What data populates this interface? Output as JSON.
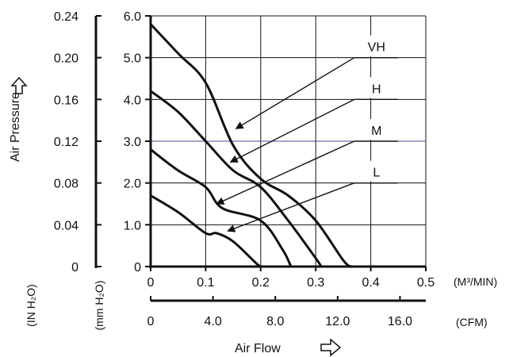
{
  "chart_data": {
    "type": "line",
    "xlabel": "Air Flow",
    "x_unit_primary": "(M³/MIN)",
    "x_unit_secondary": "(CFM)",
    "ylabel": "Air Pressure",
    "y_unit_primary": "(mm H₂O)",
    "y_unit_secondary": "(IN H₂O)",
    "xlim": [
      0,
      0.5
    ],
    "ylim": [
      0,
      6.0
    ],
    "x_ticks": [
      0,
      0.1,
      0.2,
      0.3,
      0.4,
      0.5
    ],
    "x_tick_labels": [
      "0",
      "0.1",
      "0.2",
      "0.3",
      "0.4",
      "0.5"
    ],
    "x2_ticks": [
      0,
      4.0,
      8.0,
      12.0,
      16.0
    ],
    "x2_tick_labels": [
      "0",
      "4.0",
      "8.0",
      "12.0",
      "16.0"
    ],
    "y_ticks": [
      0,
      1.0,
      2.0,
      3.0,
      4.0,
      5.0,
      6.0
    ],
    "y_tick_labels": [
      "0",
      "1.0",
      "2.0",
      "3.0",
      "4.0",
      "5.0",
      "6.0"
    ],
    "y2_ticks": [
      0,
      0.04,
      0.08,
      0.12,
      0.16,
      0.2,
      0.24
    ],
    "y2_tick_labels": [
      "0",
      "0.04",
      "0.08",
      "0.12",
      "0.16",
      "0.20",
      "0.24"
    ],
    "grid": true,
    "series": [
      {
        "name": "VH",
        "x": [
          0,
          0.05,
          0.1,
          0.15,
          0.2,
          0.25,
          0.3,
          0.35,
          0.365
        ],
        "y": [
          5.8,
          5.1,
          4.4,
          2.9,
          2.1,
          1.7,
          1.1,
          0.15,
          0
        ]
      },
      {
        "name": "H",
        "x": [
          0,
          0.05,
          0.1,
          0.15,
          0.2,
          0.25,
          0.3,
          0.31
        ],
        "y": [
          4.2,
          3.7,
          3.0,
          2.3,
          1.9,
          1.1,
          0.2,
          0
        ]
      },
      {
        "name": "M",
        "x": [
          0,
          0.05,
          0.1,
          0.13,
          0.2,
          0.24,
          0.255
        ],
        "y": [
          2.8,
          2.3,
          1.9,
          1.4,
          1.1,
          0.4,
          0
        ]
      },
      {
        "name": "L",
        "x": [
          0,
          0.05,
          0.1,
          0.12,
          0.15,
          0.19,
          0.2
        ],
        "y": [
          1.7,
          1.3,
          0.8,
          0.8,
          0.6,
          0.1,
          0
        ]
      }
    ],
    "callouts": [
      {
        "label": "VH",
        "label_xy": [
          0.37,
          5.0
        ],
        "arrow_to": [
          0.155,
          3.3
        ]
      },
      {
        "label": "H",
        "label_xy": [
          0.37,
          4.0
        ],
        "arrow_to": [
          0.145,
          2.5
        ]
      },
      {
        "label": "M",
        "label_xy": [
          0.37,
          3.0
        ],
        "arrow_to": [
          0.12,
          1.5
        ]
      },
      {
        "label": "L",
        "label_xy": [
          0.37,
          2.0
        ],
        "arrow_to": [
          0.14,
          0.85
        ]
      }
    ]
  },
  "colors": {
    "curve": "#111111",
    "grid": "#111111",
    "grid_accent": "#4a4d8c",
    "background": "#ffffff"
  }
}
